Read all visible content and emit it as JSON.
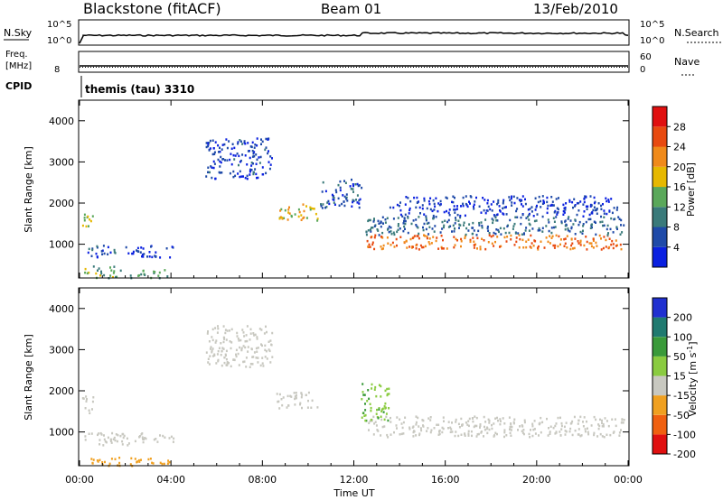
{
  "header": {
    "station": "Blackstone (fitACF)",
    "beam": "Beam 01",
    "date": "13/Feb/2010"
  },
  "top_panels": {
    "nsky_label": "N.Sky",
    "nsearch_label": "N.Search",
    "nsky_ticks": [
      "10^5",
      "10^0"
    ],
    "freq_label_1": "Freq.",
    "freq_label_2": "[MHz]",
    "freq_tick": "8",
    "nave_label": "Nave",
    "nave_ticks": [
      "60",
      "0"
    ],
    "cpid_label": "CPID",
    "cpid_value": "themis (tau) 3310"
  },
  "chart_data": [
    {
      "type": "heatmap",
      "panel": "power",
      "ylabel": "Slant Range [km]",
      "xlabel": "",
      "xlim": [
        "00:00",
        "24:00"
      ],
      "ylim": [
        180,
        4500
      ],
      "yticks": [
        1000,
        2000,
        3000,
        4000
      ],
      "colorbar_label": "Power [dB]",
      "colorbar_ticks": [
        4,
        8,
        12,
        16,
        20,
        24,
        28
      ],
      "colorbar_colors": [
        "#0a20e0",
        "#1f4aa8",
        "#3a7a7a",
        "#5aa85a",
        "#e6b800",
        "#f08a1a",
        "#e84a10",
        "#e01010"
      ],
      "regions": [
        {
          "t0": 0.1,
          "t1": 0.6,
          "r0": 1450,
          "r1": 1900,
          "val": 16
        },
        {
          "t0": 0.2,
          "t1": 1.6,
          "r0": 700,
          "r1": 1000,
          "val": 6
        },
        {
          "t0": 2.0,
          "t1": 4.1,
          "r0": 700,
          "r1": 1000,
          "val": 4
        },
        {
          "t0": 0.2,
          "t1": 1.8,
          "r0": 200,
          "r1": 500,
          "val": 14
        },
        {
          "t0": 2.2,
          "t1": 4.0,
          "r0": 200,
          "r1": 400,
          "val": 12
        },
        {
          "t0": 8.6,
          "t1": 10.4,
          "r0": 1600,
          "r1": 2000,
          "val": 18
        },
        {
          "t0": 12.5,
          "t1": 23.8,
          "r0": 900,
          "r1": 1250,
          "val": 24
        },
        {
          "t0": 12.5,
          "t1": 23.8,
          "r0": 1250,
          "r1": 1700,
          "val": 8
        },
        {
          "t0": 13.5,
          "t1": 23.5,
          "r0": 1700,
          "r1": 2200,
          "val": 4
        },
        {
          "t0": 10.5,
          "t1": 12.3,
          "r0": 1900,
          "r1": 2600,
          "val": 6
        },
        {
          "t0": 5.5,
          "t1": 8.4,
          "r0": 2600,
          "r1": 3600,
          "val": 5
        }
      ]
    },
    {
      "type": "heatmap",
      "panel": "velocity",
      "ylabel": "Slant Range [km]",
      "xlabel": "Time UT",
      "xlim": [
        "00:00",
        "24:00"
      ],
      "ylim": [
        180,
        4500
      ],
      "yticks": [
        1000,
        2000,
        3000,
        4000
      ],
      "xticks": [
        "00:00",
        "04:00",
        "08:00",
        "12:00",
        "16:00",
        "20:00",
        "00:00"
      ],
      "colorbar_label": "Velocity [m s-1]",
      "colorbar_ticks": [
        200,
        100,
        50,
        15,
        -15,
        -50,
        -100,
        -200
      ],
      "colorbar_colors": [
        "#2030d0",
        "#207a70",
        "#3a9a3a",
        "#8acb40",
        "#c8c8c0",
        "#f0a020",
        "#f06010",
        "#e01010"
      ],
      "regions": [
        {
          "t0": 0.1,
          "t1": 0.6,
          "r0": 1450,
          "r1": 1900,
          "val": 0
        },
        {
          "t0": 0.2,
          "t1": 4.1,
          "r0": 700,
          "r1": 1000,
          "val": 0
        },
        {
          "t0": 0.3,
          "t1": 4.0,
          "r0": 200,
          "r1": 400,
          "val": -40
        },
        {
          "t0": 8.6,
          "t1": 10.4,
          "r0": 1600,
          "r1": 2000,
          "val": 0
        },
        {
          "t0": 12.5,
          "t1": 23.8,
          "r0": 900,
          "r1": 1400,
          "val": 0
        },
        {
          "t0": 12.3,
          "t1": 13.5,
          "r0": 1300,
          "r1": 2200,
          "val": 30
        },
        {
          "t0": 5.5,
          "t1": 8.4,
          "r0": 2600,
          "r1": 3600,
          "val": 0
        }
      ]
    }
  ]
}
